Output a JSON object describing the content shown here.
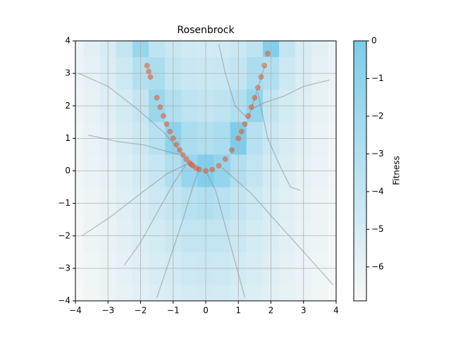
{
  "chart_data": {
    "type": "heatmap",
    "title": "Rosenbrock",
    "colorbar_label": "Fitness",
    "xlim": [
      -4,
      4
    ],
    "ylim": [
      -4,
      4
    ],
    "xticks": [
      {
        "value": -4,
        "label": "−4"
      },
      {
        "value": -3,
        "label": "−3"
      },
      {
        "value": -2,
        "label": "−2"
      },
      {
        "value": -1,
        "label": "−1"
      },
      0,
      1,
      2,
      3,
      4
    ],
    "yticks": [
      {
        "value": -4,
        "label": "−4"
      },
      {
        "value": -3,
        "label": "−3"
      },
      {
        "value": -2,
        "label": "−2"
      },
      {
        "value": -1,
        "label": "−1"
      },
      0,
      1,
      2,
      3,
      4
    ],
    "grid": true,
    "clim": [
      -6.9,
      0
    ],
    "cticks": [
      0,
      {
        "value": -1,
        "label": "−1"
      },
      {
        "value": -2,
        "label": "−2"
      },
      {
        "value": -3,
        "label": "−3"
      },
      {
        "value": -4,
        "label": "−4"
      },
      {
        "value": -5,
        "label": "−5"
      },
      {
        "value": -6,
        "label": "−6"
      }
    ],
    "colormap": [
      "#f7f7f7",
      "#7ccdea"
    ],
    "heatmap": {
      "x": [
        -4,
        -3.5,
        -3,
        -2.5,
        -2,
        -1.5,
        -1,
        -0.5,
        0,
        0.5,
        1,
        1.5,
        2,
        2.5,
        3,
        3.5,
        4
      ],
      "y": [
        4,
        3,
        2,
        1,
        0,
        -1,
        -2,
        -3,
        -4
      ],
      "values": [
        [
          -6.2,
          -5.7,
          -5.1,
          -4.0,
          -1.5,
          -3.7,
          -4.4,
          -4.7,
          -4.8,
          -4.7,
          -4.4,
          -3.7,
          -0.4,
          -4.0,
          -5.1,
          -5.7,
          -6.2
        ],
        [
          -6.3,
          -5.9,
          -5.3,
          -4.5,
          -3.1,
          -2.7,
          -3.9,
          -4.3,
          -4.4,
          -4.3,
          -3.9,
          -2.6,
          -3.0,
          -4.5,
          -5.3,
          -5.9,
          -6.3
        ],
        [
          -6.4,
          -6.0,
          -5.5,
          -4.9,
          -3.9,
          -1.7,
          -3.0,
          -3.7,
          -3.9,
          -3.7,
          -3.0,
          -1.3,
          -3.9,
          -4.9,
          -5.5,
          -6.0,
          -6.4
        ],
        [
          -6.5,
          -6.1,
          -5.7,
          -5.1,
          -4.4,
          -3.3,
          -1.0,
          -2.7,
          -3.0,
          -2.6,
          0,
          -3.3,
          -4.4,
          -5.1,
          -5.7,
          -6.1,
          -6.5
        ],
        [
          -6.6,
          -6.3,
          -5.9,
          -5.4,
          -4.8,
          -4.1,
          -3.0,
          -1.5,
          -0.4,
          -1.3,
          -3.0,
          -4.0,
          -4.8,
          -5.4,
          -5.9,
          -6.3,
          -6.6
        ],
        [
          -6.7,
          -6.4,
          -6.0,
          -5.6,
          -5.1,
          -4.5,
          -3.9,
          -3.3,
          -3.0,
          -3.3,
          -3.9,
          -4.5,
          -5.1,
          -5.6,
          -6.0,
          -6.4,
          -6.7
        ],
        [
          -6.8,
          -6.4,
          -6.1,
          -5.7,
          -5.3,
          -4.9,
          -4.4,
          -4.0,
          -3.9,
          -4.0,
          -4.4,
          -4.9,
          -5.3,
          -5.7,
          -6.1,
          -6.4,
          -6.8
        ],
        [
          -6.8,
          -6.5,
          -6.2,
          -5.9,
          -5.5,
          -5.1,
          -4.8,
          -4.5,
          -4.4,
          -4.5,
          -4.8,
          -5.1,
          -5.5,
          -5.9,
          -6.2,
          -6.5,
          -6.8
        ],
        [
          -6.9,
          -6.6,
          -6.3,
          -6.0,
          -5.7,
          -5.4,
          -5.1,
          -4.9,
          -4.8,
          -4.9,
          -5.1,
          -5.4,
          -5.7,
          -6.0,
          -6.3,
          -6.6,
          -6.9
        ]
      ]
    },
    "trajectory_color": "#8c8c8c",
    "trajectories": [
      {
        "x": [
          -3.8,
          -2.9,
          -2.0,
          -1.2,
          -0.6
        ],
        "y": [
          -2.0,
          -1.4,
          -0.7,
          -0.1,
          0.2
        ]
      },
      {
        "x": [
          3.9,
          3.1,
          2.2,
          1.4,
          0.5
        ],
        "y": [
          -3.5,
          -2.6,
          -1.6,
          -0.7,
          0.1
        ]
      },
      {
        "x": [
          -1.5,
          -1.1,
          -0.7,
          -0.4,
          -0.2
        ],
        "y": [
          -3.9,
          -2.7,
          -1.5,
          -0.5,
          0.1
        ]
      },
      {
        "x": [
          1.2,
          0.9,
          0.6,
          0.3,
          0.0
        ],
        "y": [
          -3.9,
          -2.8,
          -1.7,
          -0.6,
          0.0
        ]
      },
      {
        "x": [
          3.8,
          3.0,
          2.4,
          1.8,
          1.4
        ],
        "y": [
          2.8,
          2.6,
          2.3,
          2.1,
          1.9
        ]
      },
      {
        "x": [
          -3.6,
          -2.7,
          -1.9,
          -1.2,
          -0.8
        ],
        "y": [
          1.1,
          0.9,
          0.8,
          0.6,
          0.5
        ]
      },
      {
        "x": [
          -3.9,
          -3.0,
          -2.1,
          -1.3,
          -0.7
        ],
        "y": [
          3.0,
          2.6,
          1.9,
          1.2,
          0.5
        ]
      },
      {
        "x": [
          2.9,
          2.6,
          2.3,
          1.9,
          1.6
        ],
        "y": [
          -0.6,
          -0.5,
          0.1,
          1.0,
          2.4
        ]
      },
      {
        "x": [
          -2.5,
          -2.0,
          -1.5,
          -1.0,
          -0.6
        ],
        "y": [
          -2.9,
          -2.2,
          -1.3,
          -0.4,
          0.2
        ]
      },
      {
        "x": [
          0.4,
          0.6,
          0.9,
          1.3,
          1.8
        ],
        "y": [
          3.9,
          3.0,
          2.0,
          1.6,
          3.2
        ]
      }
    ],
    "points": {
      "color": "#e0542a",
      "x": [
        -1.8,
        -1.75,
        -1.7,
        -1.5,
        -1.4,
        -1.3,
        -1.2,
        -1.1,
        -1.0,
        -0.9,
        -0.8,
        -0.7,
        -0.6,
        -0.5,
        -0.45,
        -0.4,
        -0.3,
        -0.2,
        0,
        0.2,
        0.4,
        0.6,
        0.8,
        1.0,
        1.1,
        1.2,
        1.3,
        1.4,
        1.5,
        1.6,
        1.7,
        1.8,
        1.9
      ],
      "y": [
        3.24,
        3.06,
        2.89,
        2.25,
        1.96,
        1.69,
        1.44,
        1.21,
        1.0,
        0.81,
        0.64,
        0.49,
        0.36,
        0.25,
        0.2,
        0.16,
        0.09,
        0.04,
        0,
        0.04,
        0.16,
        0.36,
        0.64,
        1.0,
        1.21,
        1.44,
        1.69,
        1.96,
        2.25,
        2.56,
        2.89,
        3.24,
        3.61
      ]
    }
  }
}
